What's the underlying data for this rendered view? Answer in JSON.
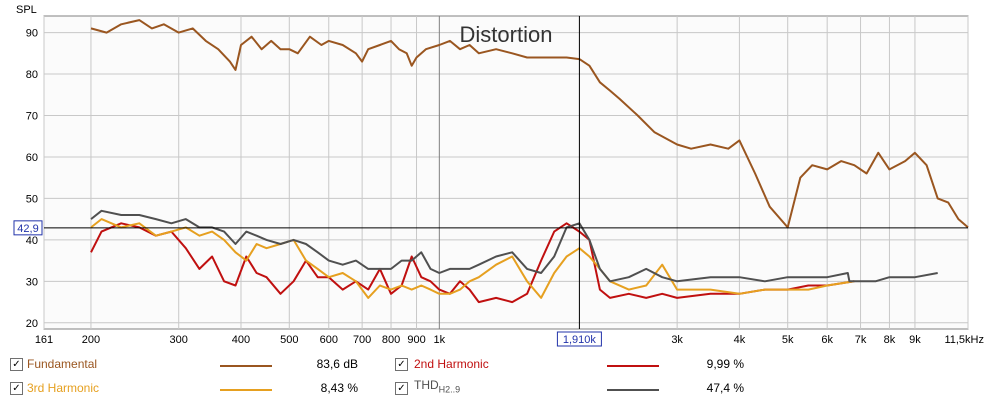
{
  "chart_data": {
    "type": "line",
    "title": "Distortion",
    "ylabel": "SPL",
    "xlabel": "",
    "x_unit_label": "kHz",
    "x_scale": "log",
    "xlim": [
      161,
      11500
    ],
    "ylim": [
      18.5,
      94
    ],
    "grid": true,
    "y_ticks": [
      20,
      30,
      40,
      50,
      60,
      70,
      80,
      90
    ],
    "y_tick_labels": [
      "20",
      "30",
      "40",
      "50",
      "60",
      "70",
      "80",
      "90"
    ],
    "x_ticks": [
      161,
      200,
      300,
      400,
      500,
      600,
      700,
      800,
      900,
      1000,
      3000,
      4000,
      5000,
      6000,
      7000,
      8000,
      9000,
      11500
    ],
    "x_tick_labels": [
      "161",
      "200",
      "300",
      "400",
      "500",
      "600",
      "700",
      "800",
      "900",
      "1k",
      "3k",
      "4k",
      "5k",
      "6k",
      "7k",
      "8k",
      "9k",
      "11,5kHz"
    ],
    "cursor": {
      "x": 1910,
      "y": 42.9,
      "x_label": "1,910k",
      "y_label": "42,9"
    },
    "series": [
      {
        "name": "Fundamental",
        "color": "#9a5620",
        "value": "83,6 dB",
        "x": [
          200,
          215,
          230,
          250,
          265,
          280,
          300,
          320,
          340,
          360,
          380,
          390,
          400,
          420,
          440,
          460,
          480,
          500,
          520,
          550,
          580,
          600,
          640,
          680,
          700,
          720,
          760,
          800,
          830,
          860,
          880,
          900,
          940,
          1000,
          1050,
          1100,
          1150,
          1200,
          1300,
          1400,
          1500,
          1600,
          1700,
          1800,
          1910,
          2000,
          2100,
          2200,
          2300,
          2500,
          2700,
          3000,
          3200,
          3500,
          3800,
          4000,
          4300,
          4600,
          5000,
          5300,
          5600,
          6000,
          6400,
          6800,
          7200,
          7600,
          8000,
          8600,
          9000,
          9500,
          10000,
          10500,
          11000,
          11500
        ],
        "y": [
          91,
          90,
          92,
          93,
          91,
          92,
          90,
          91,
          88,
          86,
          83,
          81,
          87,
          89,
          86,
          88,
          86,
          86,
          85,
          89,
          87,
          88,
          87,
          85,
          83,
          86,
          87,
          88,
          86,
          85,
          82,
          84,
          86,
          87,
          88,
          86,
          87,
          85,
          86,
          85,
          84,
          84,
          84,
          84,
          83.6,
          82,
          78,
          76,
          74,
          70,
          66,
          63,
          62,
          63,
          62,
          64,
          56,
          48,
          43,
          55,
          58,
          57,
          59,
          58,
          56,
          61,
          57,
          59,
          61,
          58,
          50,
          49,
          45,
          43
        ]
      },
      {
        "name": "2nd Harmonic",
        "color": "#c01010",
        "value": "9,99 %",
        "x": [
          200,
          210,
          230,
          250,
          270,
          290,
          310,
          330,
          350,
          370,
          390,
          410,
          430,
          450,
          480,
          510,
          540,
          570,
          600,
          640,
          680,
          720,
          760,
          800,
          840,
          880,
          920,
          960,
          1000,
          1050,
          1100,
          1150,
          1200,
          1300,
          1400,
          1500,
          1600,
          1700,
          1800,
          1910,
          2000,
          2100,
          2200,
          2400,
          2600,
          2800,
          3000,
          3500,
          4000,
          4500,
          5000,
          5500,
          6000,
          6800
        ],
        "y": [
          37,
          42,
          44,
          43,
          41,
          42,
          38,
          33,
          36,
          30,
          29,
          36,
          32,
          31,
          27,
          30,
          35,
          31,
          31,
          28,
          30,
          28,
          33,
          27,
          29,
          36,
          31,
          30,
          28,
          27,
          30,
          28,
          25,
          26,
          25,
          27,
          35,
          42,
          44,
          42,
          40,
          28,
          26,
          27,
          26,
          27,
          26,
          27,
          27,
          28,
          28,
          29,
          29,
          30
        ]
      },
      {
        "name": "3rd Harmonic",
        "color": "#e6a020",
        "value": "8,43 %",
        "x": [
          200,
          210,
          230,
          250,
          270,
          290,
          310,
          330,
          350,
          370,
          390,
          410,
          430,
          450,
          480,
          510,
          540,
          570,
          600,
          640,
          680,
          720,
          760,
          800,
          840,
          880,
          920,
          960,
          1000,
          1050,
          1100,
          1150,
          1200,
          1300,
          1400,
          1500,
          1600,
          1700,
          1800,
          1910,
          2000,
          2100,
          2200,
          2400,
          2600,
          2800,
          3000,
          3500,
          4000,
          4500,
          5000,
          5500,
          6000,
          6800
        ],
        "y": [
          43,
          45,
          43,
          44,
          41,
          42,
          43,
          41,
          42,
          40,
          37,
          35,
          39,
          38,
          39,
          40,
          35,
          33,
          31,
          32,
          30,
          26,
          29,
          28,
          29,
          28,
          29,
          28,
          27,
          27,
          28,
          30,
          31,
          34,
          36,
          30,
          26,
          32,
          36,
          38,
          36,
          33,
          30,
          28,
          29,
          34,
          28,
          28,
          27,
          28,
          28,
          28,
          29,
          30
        ]
      },
      {
        "name": "THD",
        "name_sub": "H2..9",
        "color": "#505050",
        "value": "47,4 %",
        "x": [
          200,
          210,
          230,
          250,
          270,
          290,
          310,
          330,
          350,
          370,
          390,
          410,
          430,
          450,
          480,
          510,
          540,
          570,
          600,
          640,
          680,
          720,
          760,
          800,
          840,
          880,
          920,
          960,
          1000,
          1050,
          1100,
          1150,
          1200,
          1300,
          1400,
          1500,
          1600,
          1700,
          1800,
          1910,
          2000,
          2100,
          2200,
          2400,
          2600,
          2800,
          3000,
          3500,
          4000,
          4500,
          5000,
          5500,
          6000,
          6600,
          6650,
          7000,
          7500,
          8000,
          9000,
          10000
        ],
        "y": [
          45,
          47,
          46,
          46,
          45,
          44,
          45,
          43,
          43,
          42,
          39,
          42,
          41,
          40,
          39,
          40,
          39,
          37,
          35,
          34,
          35,
          33,
          33,
          33,
          35,
          35,
          37,
          33,
          32,
          33,
          33,
          33,
          34,
          36,
          37,
          33,
          32,
          36,
          43,
          44,
          40,
          33,
          30,
          31,
          33,
          31,
          30,
          31,
          31,
          30,
          31,
          31,
          31,
          32,
          30,
          30,
          30,
          31,
          31,
          32
        ]
      }
    ]
  },
  "legend": {
    "fundamental_check": "✓",
    "second_check": "✓",
    "third_check": "✓",
    "thd_check": "✓"
  }
}
